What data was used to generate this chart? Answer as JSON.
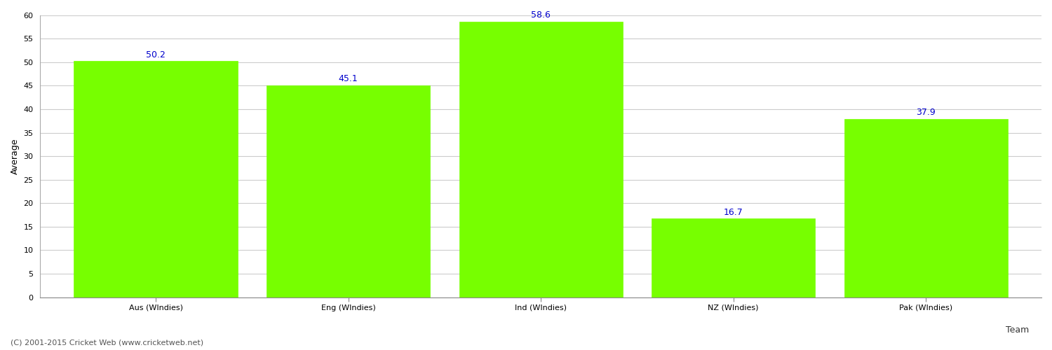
{
  "categories": [
    "Aus (WIndies)",
    "Eng (WIndies)",
    "Ind (WIndies)",
    "NZ (WIndies)",
    "Pak (WIndies)"
  ],
  "values": [
    50.2,
    45.1,
    58.6,
    16.7,
    37.9
  ],
  "bar_color": "#77ff00",
  "bar_edge_color": "#77ff00",
  "value_color": "#0000cc",
  "value_fontsize": 9,
  "xlabel": "Team",
  "ylabel": "Average",
  "ylim": [
    0,
    60
  ],
  "yticks": [
    0,
    5,
    10,
    15,
    20,
    25,
    30,
    35,
    40,
    45,
    50,
    55,
    60
  ],
  "grid_color": "#cccccc",
  "background_color": "#ffffff",
  "footer_text": "(C) 2001-2015 Cricket Web (www.cricketweb.net)",
  "footer_fontsize": 8,
  "footer_color": "#555555",
  "axis_label_fontsize": 9,
  "tick_fontsize": 8,
  "bar_width": 0.85
}
